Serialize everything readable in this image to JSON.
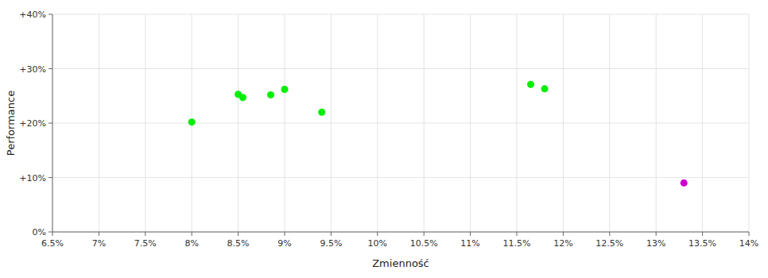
{
  "chart_data": {
    "type": "scatter",
    "xlabel": "Zmienność",
    "ylabel": "Performance",
    "xlim": [
      6.5,
      14.0
    ],
    "ylim": [
      0,
      40
    ],
    "xticks": [
      {
        "value": 6.5,
        "label": "6.5%"
      },
      {
        "value": 7.0,
        "label": "7%"
      },
      {
        "value": 7.5,
        "label": "7.5%"
      },
      {
        "value": 8.0,
        "label": "8%"
      },
      {
        "value": 8.5,
        "label": "8.5%"
      },
      {
        "value": 9.0,
        "label": "9%"
      },
      {
        "value": 9.5,
        "label": "9.5%"
      },
      {
        "value": 10.0,
        "label": "10%"
      },
      {
        "value": 10.5,
        "label": "10.5%"
      },
      {
        "value": 11.0,
        "label": "11%"
      },
      {
        "value": 11.5,
        "label": "11.5%"
      },
      {
        "value": 12.0,
        "label": "12%"
      },
      {
        "value": 12.5,
        "label": "12.5%"
      },
      {
        "value": 13.0,
        "label": "13%"
      },
      {
        "value": 13.5,
        "label": "13.5%"
      },
      {
        "value": 14.0,
        "label": "14%"
      }
    ],
    "yticks": [
      {
        "value": 0,
        "label": "0%"
      },
      {
        "value": 10,
        "label": "+10%"
      },
      {
        "value": 20,
        "label": "+20%"
      },
      {
        "value": 30,
        "label": "+30%"
      },
      {
        "value": 40,
        "label": "+40%"
      }
    ],
    "grid": true,
    "series": [
      {
        "color": "#00ee00",
        "x": [
          8.0,
          8.5,
          8.55,
          8.85,
          9.0,
          9.4,
          11.65,
          11.8
        ],
        "values": [
          20.2,
          25.3,
          24.7,
          25.2,
          26.2,
          22.0,
          27.1,
          26.3
        ]
      },
      {
        "color": "#cc00cc",
        "x": [
          13.3
        ],
        "values": [
          9.0
        ]
      }
    ]
  }
}
